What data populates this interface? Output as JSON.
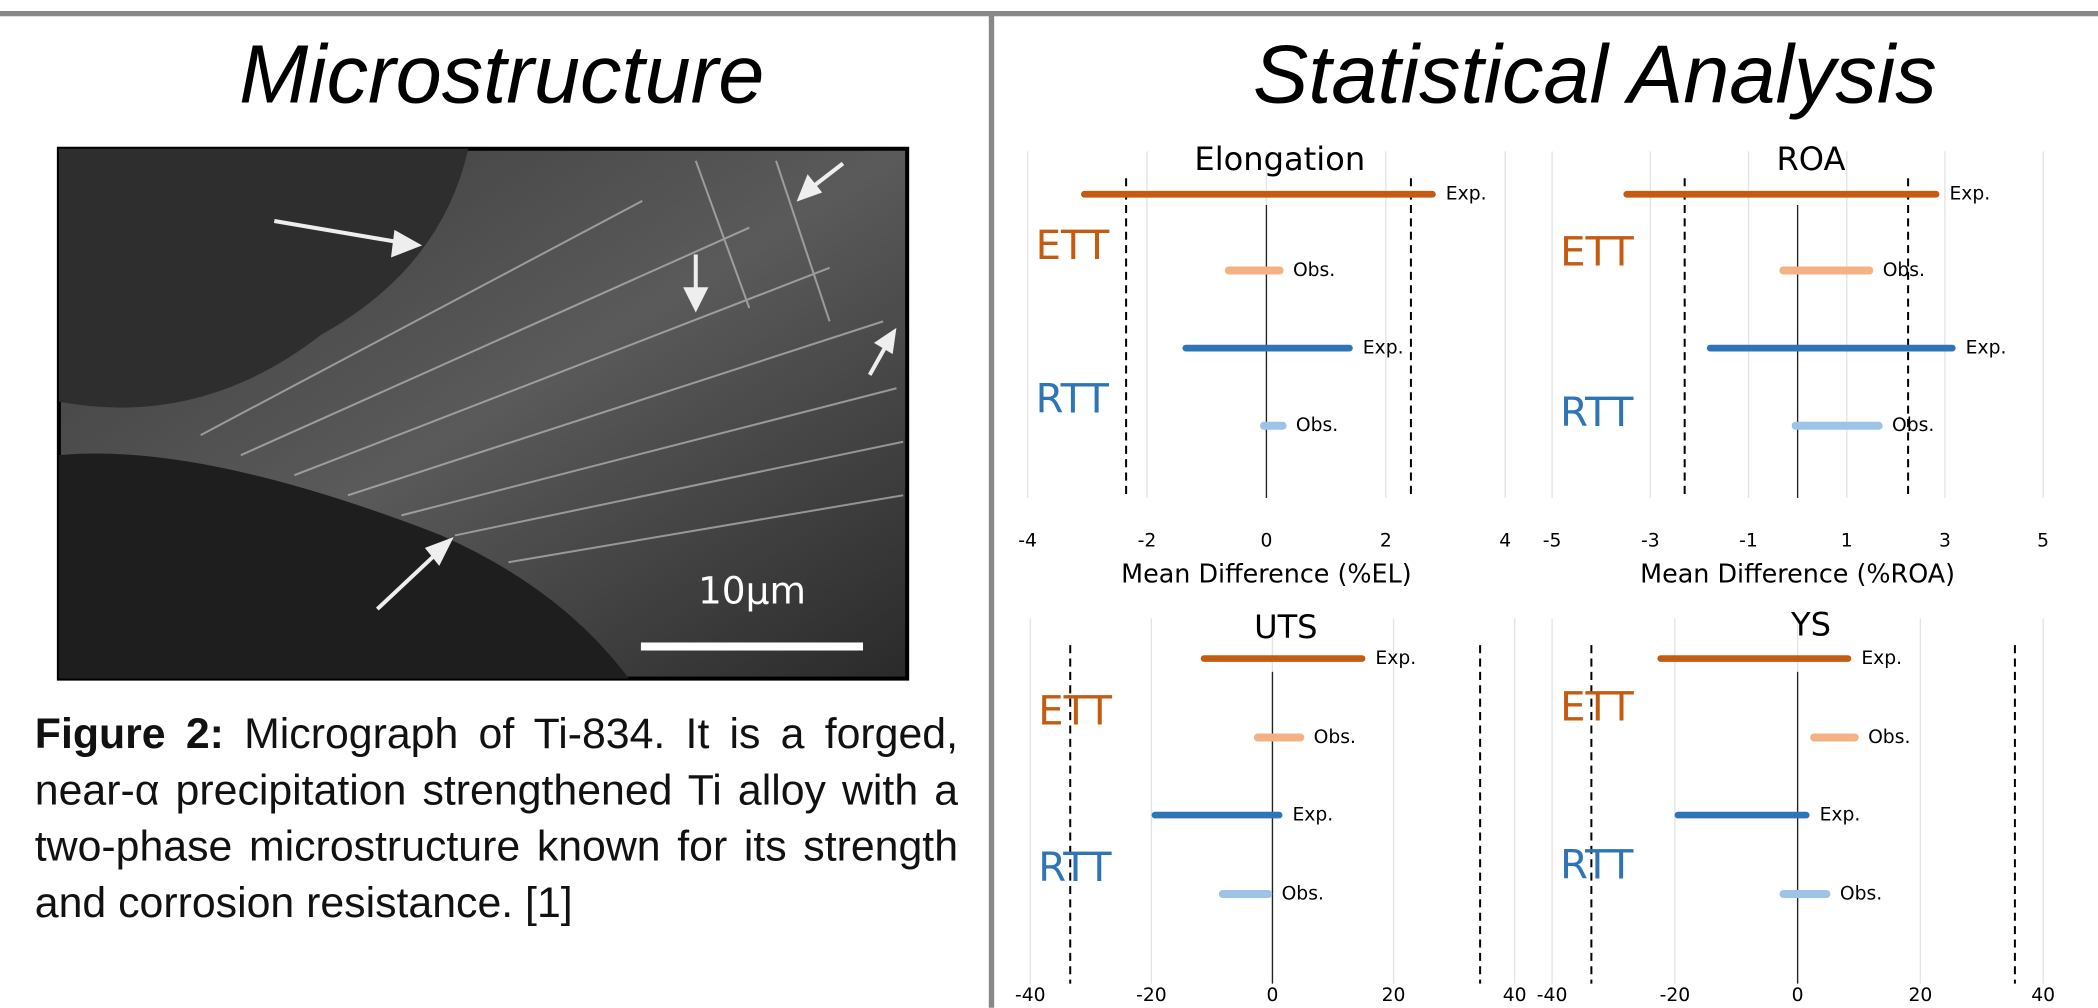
{
  "left": {
    "title": "Microstructure",
    "micrograph": {
      "scale_label": "10µm"
    },
    "caption": {
      "label": "Figure 2:",
      "text": "Micrograph of Ti-834. It is a forged, near-α precipitation strengthened Ti alloy with a two-phase microstructure known for its strength and corrosion resistance. [1]"
    }
  },
  "right": {
    "title": "Statistical Analysis"
  },
  "chart_data": [
    {
      "type": "range",
      "title": "Elongation",
      "xlabel": "Mean Difference (%EL)",
      "xlim": [
        -4,
        4
      ],
      "xticks": [
        -4,
        -2,
        0,
        2,
        4
      ],
      "grid": true,
      "groups": [
        {
          "name": "ETT",
          "color": "#c55a11"
        },
        {
          "name": "RTT",
          "color": "#2e75b6"
        }
      ],
      "series": [
        {
          "name": "Exp.",
          "color": "#c55a11",
          "values": [
            -3.05,
            2.78
          ]
        },
        {
          "name": "Obs.",
          "color": "#f4b183",
          "values": [
            -0.63,
            0.22
          ]
        },
        {
          "name": "Exp.",
          "color": "#2e75b6",
          "values": [
            -1.35,
            1.39
          ]
        },
        {
          "name": "Obs.",
          "color": "#9dc3e6",
          "values": [
            -0.04,
            0.27
          ]
        }
      ],
      "reference_lines": [
        -2.35,
        2.42
      ]
    },
    {
      "type": "range",
      "title": "ROA",
      "xlabel": "Mean Difference (%ROA)",
      "xlim": [
        -5,
        5
      ],
      "xticks": [
        -5,
        -3,
        -1,
        1,
        3,
        5
      ],
      "grid": true,
      "groups": [
        {
          "name": "ETT",
          "color": "#c55a11"
        },
        {
          "name": "RTT",
          "color": "#2e75b6"
        }
      ],
      "series": [
        {
          "name": "Exp.",
          "color": "#c55a11",
          "values": [
            -3.48,
            2.82
          ]
        },
        {
          "name": "Obs.",
          "color": "#f4b183",
          "values": [
            -0.29,
            1.46
          ]
        },
        {
          "name": "Exp.",
          "color": "#2e75b6",
          "values": [
            -1.78,
            3.15
          ]
        },
        {
          "name": "Obs.",
          "color": "#9dc3e6",
          "values": [
            -0.04,
            1.65
          ]
        }
      ],
      "reference_lines": [
        -2.3,
        2.25
      ]
    },
    {
      "type": "range",
      "title": "UTS",
      "xlim": [
        -40,
        40
      ],
      "xticks": [
        -40,
        -20,
        0,
        20,
        40
      ],
      "grid": true,
      "groups": [
        {
          "name": "ETT",
          "color": "#c55a11"
        },
        {
          "name": "RTT",
          "color": "#2e75b6"
        }
      ],
      "series": [
        {
          "name": "Exp.",
          "color": "#c55a11",
          "values": [
            -11.3,
            14.8
          ]
        },
        {
          "name": "Obs.",
          "color": "#f4b183",
          "values": [
            -2.4,
            4.6
          ]
        },
        {
          "name": "Exp.",
          "color": "#2e75b6",
          "values": [
            -19.4,
            1.1
          ]
        },
        {
          "name": "Obs.",
          "color": "#9dc3e6",
          "values": [
            -8.2,
            -0.7
          ]
        }
      ],
      "reference_lines": [
        -33.4,
        34.3
      ]
    },
    {
      "type": "range",
      "title": "YS",
      "xlim": [
        -40,
        40
      ],
      "xticks": [
        -40,
        -20,
        0,
        20,
        40
      ],
      "grid": true,
      "groups": [
        {
          "name": "ETT",
          "color": "#c55a11"
        },
        {
          "name": "RTT",
          "color": "#2e75b6"
        }
      ],
      "series": [
        {
          "name": "Exp.",
          "color": "#c55a11",
          "values": [
            -22.3,
            8.2
          ]
        },
        {
          "name": "Obs.",
          "color": "#f4b183",
          "values": [
            2.7,
            9.3
          ]
        },
        {
          "name": "Exp.",
          "color": "#2e75b6",
          "values": [
            -19.5,
            1.4
          ]
        },
        {
          "name": "Obs.",
          "color": "#9dc3e6",
          "values": [
            -2.3,
            4.7
          ]
        }
      ],
      "reference_lines": [
        -33.6,
        35.4
      ]
    }
  ]
}
